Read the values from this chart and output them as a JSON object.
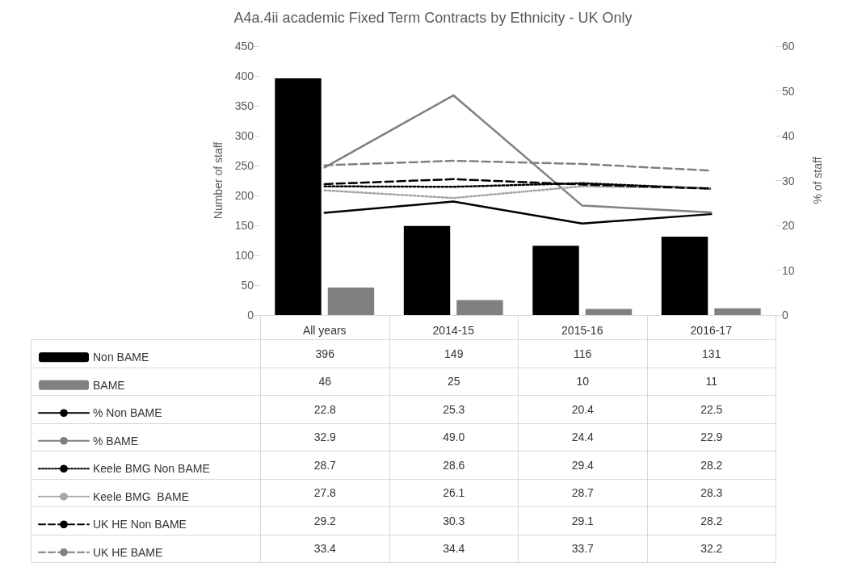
{
  "chart_data": {
    "type": "bar",
    "title": "A4a.4ii academic Fixed Term Contracts by Ethnicity - UK Only",
    "ylabel": "Number of staff",
    "y2label": "% of staff",
    "categories": [
      "All years",
      "2014-15",
      "2015-16",
      "2016-17"
    ],
    "ylim": [
      0,
      450
    ],
    "yticks": [
      0,
      50,
      100,
      150,
      200,
      250,
      300,
      350,
      400,
      450
    ],
    "y2lim": [
      0,
      60
    ],
    "y2ticks": [
      0,
      10,
      20,
      30,
      40,
      50,
      60
    ],
    "legend": "bottom left",
    "series": [
      {
        "name": "Non BAME",
        "color": "#000000",
        "values": [
          396,
          149,
          116,
          131
        ],
        "value_labels": [
          "396",
          "149",
          "116",
          "131"
        ]
      },
      {
        "name": "BAME",
        "color": "#808080",
        "values": [
          46,
          25,
          10,
          11
        ],
        "value_labels": [
          "46",
          "25",
          "10",
          "11"
        ]
      },
      {
        "name": "% Non BAME",
        "type": "line",
        "axis": "y2",
        "color": "#000000",
        "line_style": "solid",
        "values": [
          22.8,
          25.3,
          20.4,
          22.5
        ],
        "value_labels": [
          "22.8",
          "25.3",
          "20.4",
          "22.5"
        ]
      },
      {
        "name": "% BAME",
        "type": "line",
        "axis": "y2",
        "color": "#808080",
        "line_style": "solid",
        "values": [
          32.9,
          49.0,
          24.4,
          22.9
        ],
        "value_labels": [
          "32.9",
          "49.0",
          "24.4",
          "22.9"
        ]
      },
      {
        "name": "Keele BMG Non BAME",
        "type": "line",
        "axis": "y2",
        "color": "#000000",
        "line_style": "dotted",
        "values": [
          28.7,
          28.6,
          29.4,
          28.2
        ],
        "value_labels": [
          "28.7",
          "28.6",
          "29.4",
          "28.2"
        ]
      },
      {
        "name": "Keele BMG  BAME",
        "type": "line",
        "axis": "y2",
        "color": "#a6a6a6",
        "line_style": "dotted",
        "values": [
          27.8,
          26.1,
          28.7,
          28.3
        ],
        "value_labels": [
          "27.8",
          "26.1",
          "28.7",
          "28.3"
        ]
      },
      {
        "name": "UK HE Non BAME",
        "type": "line",
        "axis": "y2",
        "color": "#000000",
        "line_style": "dashed",
        "values": [
          29.2,
          30.3,
          29.1,
          28.2
        ],
        "value_labels": [
          "29.2",
          "30.3",
          "29.1",
          "28.2"
        ]
      },
      {
        "name": "UK HE BAME",
        "type": "line",
        "axis": "y2",
        "color": "#808080",
        "line_style": "dashed",
        "values": [
          33.4,
          34.4,
          33.7,
          32.2
        ],
        "value_labels": [
          "33.4",
          "34.4",
          "33.7",
          "32.2"
        ]
      }
    ]
  }
}
